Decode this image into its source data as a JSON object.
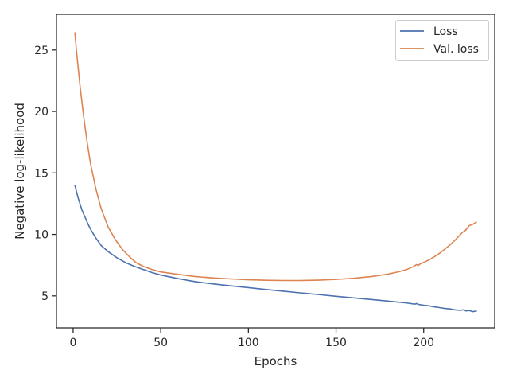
{
  "chart_data": {
    "type": "line",
    "title": "",
    "xlabel": "Epochs",
    "ylabel": "Negative log-likelihood",
    "xlim": [
      -9.5,
      240.5
    ],
    "ylim": [
      2.4,
      27.9
    ],
    "xticks": [
      0,
      50,
      100,
      150,
      200
    ],
    "yticks": [
      5,
      10,
      15,
      20,
      25
    ],
    "grid": false,
    "legend_position": "top-right",
    "series": [
      {
        "name": "Loss",
        "color": "#4c72b0",
        "points": [
          [
            1,
            14.0
          ],
          [
            3,
            12.9
          ],
          [
            5,
            12.0
          ],
          [
            8,
            11.0
          ],
          [
            10,
            10.4
          ],
          [
            13,
            9.7
          ],
          [
            16,
            9.1
          ],
          [
            20,
            8.6
          ],
          [
            25,
            8.1
          ],
          [
            30,
            7.7
          ],
          [
            35,
            7.4
          ],
          [
            40,
            7.15
          ],
          [
            45,
            6.9
          ],
          [
            50,
            6.7
          ],
          [
            60,
            6.4
          ],
          [
            70,
            6.15
          ],
          [
            80,
            5.97
          ],
          [
            90,
            5.82
          ],
          [
            100,
            5.67
          ],
          [
            110,
            5.52
          ],
          [
            120,
            5.38
          ],
          [
            130,
            5.24
          ],
          [
            140,
            5.11
          ],
          [
            150,
            4.97
          ],
          [
            160,
            4.84
          ],
          [
            170,
            4.71
          ],
          [
            180,
            4.57
          ],
          [
            190,
            4.43
          ],
          [
            195,
            4.33
          ],
          [
            196,
            4.38
          ],
          [
            197,
            4.31
          ],
          [
            200,
            4.24
          ],
          [
            203,
            4.19
          ],
          [
            206,
            4.11
          ],
          [
            209,
            4.05
          ],
          [
            212,
            3.98
          ],
          [
            215,
            3.94
          ],
          [
            218,
            3.86
          ],
          [
            221,
            3.83
          ],
          [
            223,
            3.88
          ],
          [
            224,
            3.78
          ],
          [
            226,
            3.81
          ],
          [
            228,
            3.72
          ],
          [
            230,
            3.76
          ]
        ]
      },
      {
        "name": "Val. loss",
        "color": "#dd8452",
        "points": [
          [
            1,
            26.4
          ],
          [
            2,
            24.8
          ],
          [
            4,
            22.0
          ],
          [
            6,
            19.6
          ],
          [
            8,
            17.5
          ],
          [
            10,
            15.7
          ],
          [
            13,
            13.7
          ],
          [
            16,
            12.1
          ],
          [
            20,
            10.6
          ],
          [
            24,
            9.6
          ],
          [
            28,
            8.8
          ],
          [
            32,
            8.2
          ],
          [
            36,
            7.7
          ],
          [
            40,
            7.4
          ],
          [
            45,
            7.15
          ],
          [
            50,
            6.95
          ],
          [
            60,
            6.75
          ],
          [
            70,
            6.57
          ],
          [
            80,
            6.46
          ],
          [
            90,
            6.38
          ],
          [
            100,
            6.31
          ],
          [
            110,
            6.27
          ],
          [
            120,
            6.25
          ],
          [
            130,
            6.25
          ],
          [
            140,
            6.28
          ],
          [
            150,
            6.34
          ],
          [
            160,
            6.43
          ],
          [
            170,
            6.57
          ],
          [
            180,
            6.78
          ],
          [
            185,
            6.94
          ],
          [
            190,
            7.13
          ],
          [
            194,
            7.38
          ],
          [
            196,
            7.55
          ],
          [
            197,
            7.48
          ],
          [
            198,
            7.6
          ],
          [
            200,
            7.72
          ],
          [
            203,
            7.93
          ],
          [
            206,
            8.18
          ],
          [
            209,
            8.46
          ],
          [
            212,
            8.8
          ],
          [
            215,
            9.15
          ],
          [
            218,
            9.55
          ],
          [
            220,
            9.85
          ],
          [
            222,
            10.15
          ],
          [
            224,
            10.35
          ],
          [
            226,
            10.72
          ],
          [
            228,
            10.82
          ],
          [
            230,
            11.0
          ]
        ]
      }
    ]
  }
}
